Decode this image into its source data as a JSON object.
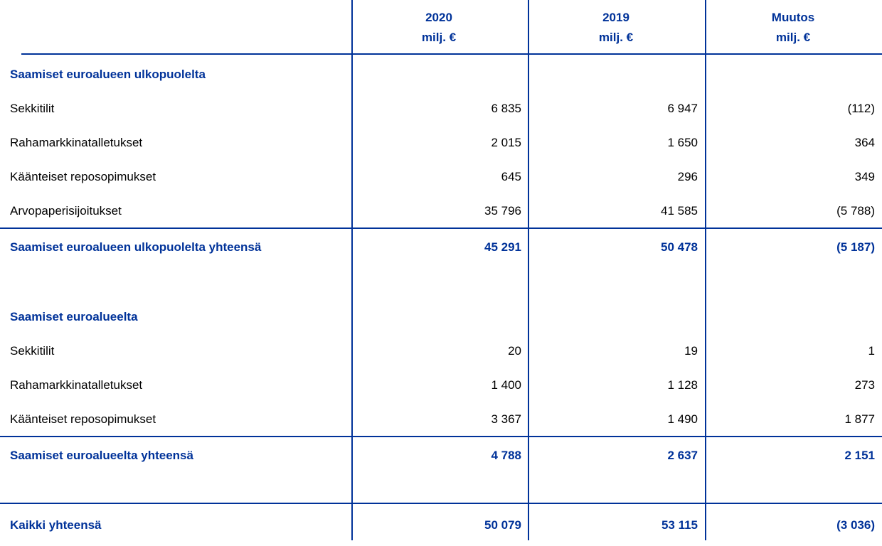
{
  "table": {
    "columns": [
      {
        "year": "2020",
        "unit": "milj. €"
      },
      {
        "year": "2019",
        "unit": "milj. €"
      },
      {
        "year": "Muutos",
        "unit": "milj. €"
      }
    ],
    "sections": [
      {
        "title": "Saamiset euroalueen ulkopuolelta",
        "rows": [
          {
            "label": "Sekkitilit",
            "values": [
              "6 835",
              "6 947",
              "(112)"
            ]
          },
          {
            "label": "Rahamarkkinatalletukset",
            "values": [
              "2 015",
              "1 650",
              "364"
            ]
          },
          {
            "label": "Käänteiset reposopimukset",
            "values": [
              "645",
              "296",
              "349"
            ]
          },
          {
            "label": "Arvopaperisijoitukset",
            "values": [
              "35 796",
              "41 585",
              "(5 788)"
            ]
          }
        ],
        "total": {
          "label": "Saamiset euroalueen ulkopuolelta yhteensä",
          "values": [
            "45 291",
            "50 478",
            "(5 187)"
          ]
        }
      },
      {
        "title": "Saamiset euroalueelta",
        "rows": [
          {
            "label": "Sekkitilit",
            "values": [
              "20",
              "19",
              "1"
            ]
          },
          {
            "label": "Rahamarkkinatalletukset",
            "values": [
              "1 400",
              "1 128",
              "273"
            ]
          },
          {
            "label": "Käänteiset reposopimukset",
            "values": [
              "3 367",
              "1 490",
              "1 877"
            ]
          }
        ],
        "total": {
          "label": "Saamiset euroalueelta yhteensä",
          "values": [
            "4 788",
            "2 637",
            "2 151"
          ]
        }
      }
    ],
    "grand_total": {
      "label": "Kaikki yhteensä",
      "values": [
        "50 079",
        "53 115",
        "(3 036)"
      ]
    }
  }
}
